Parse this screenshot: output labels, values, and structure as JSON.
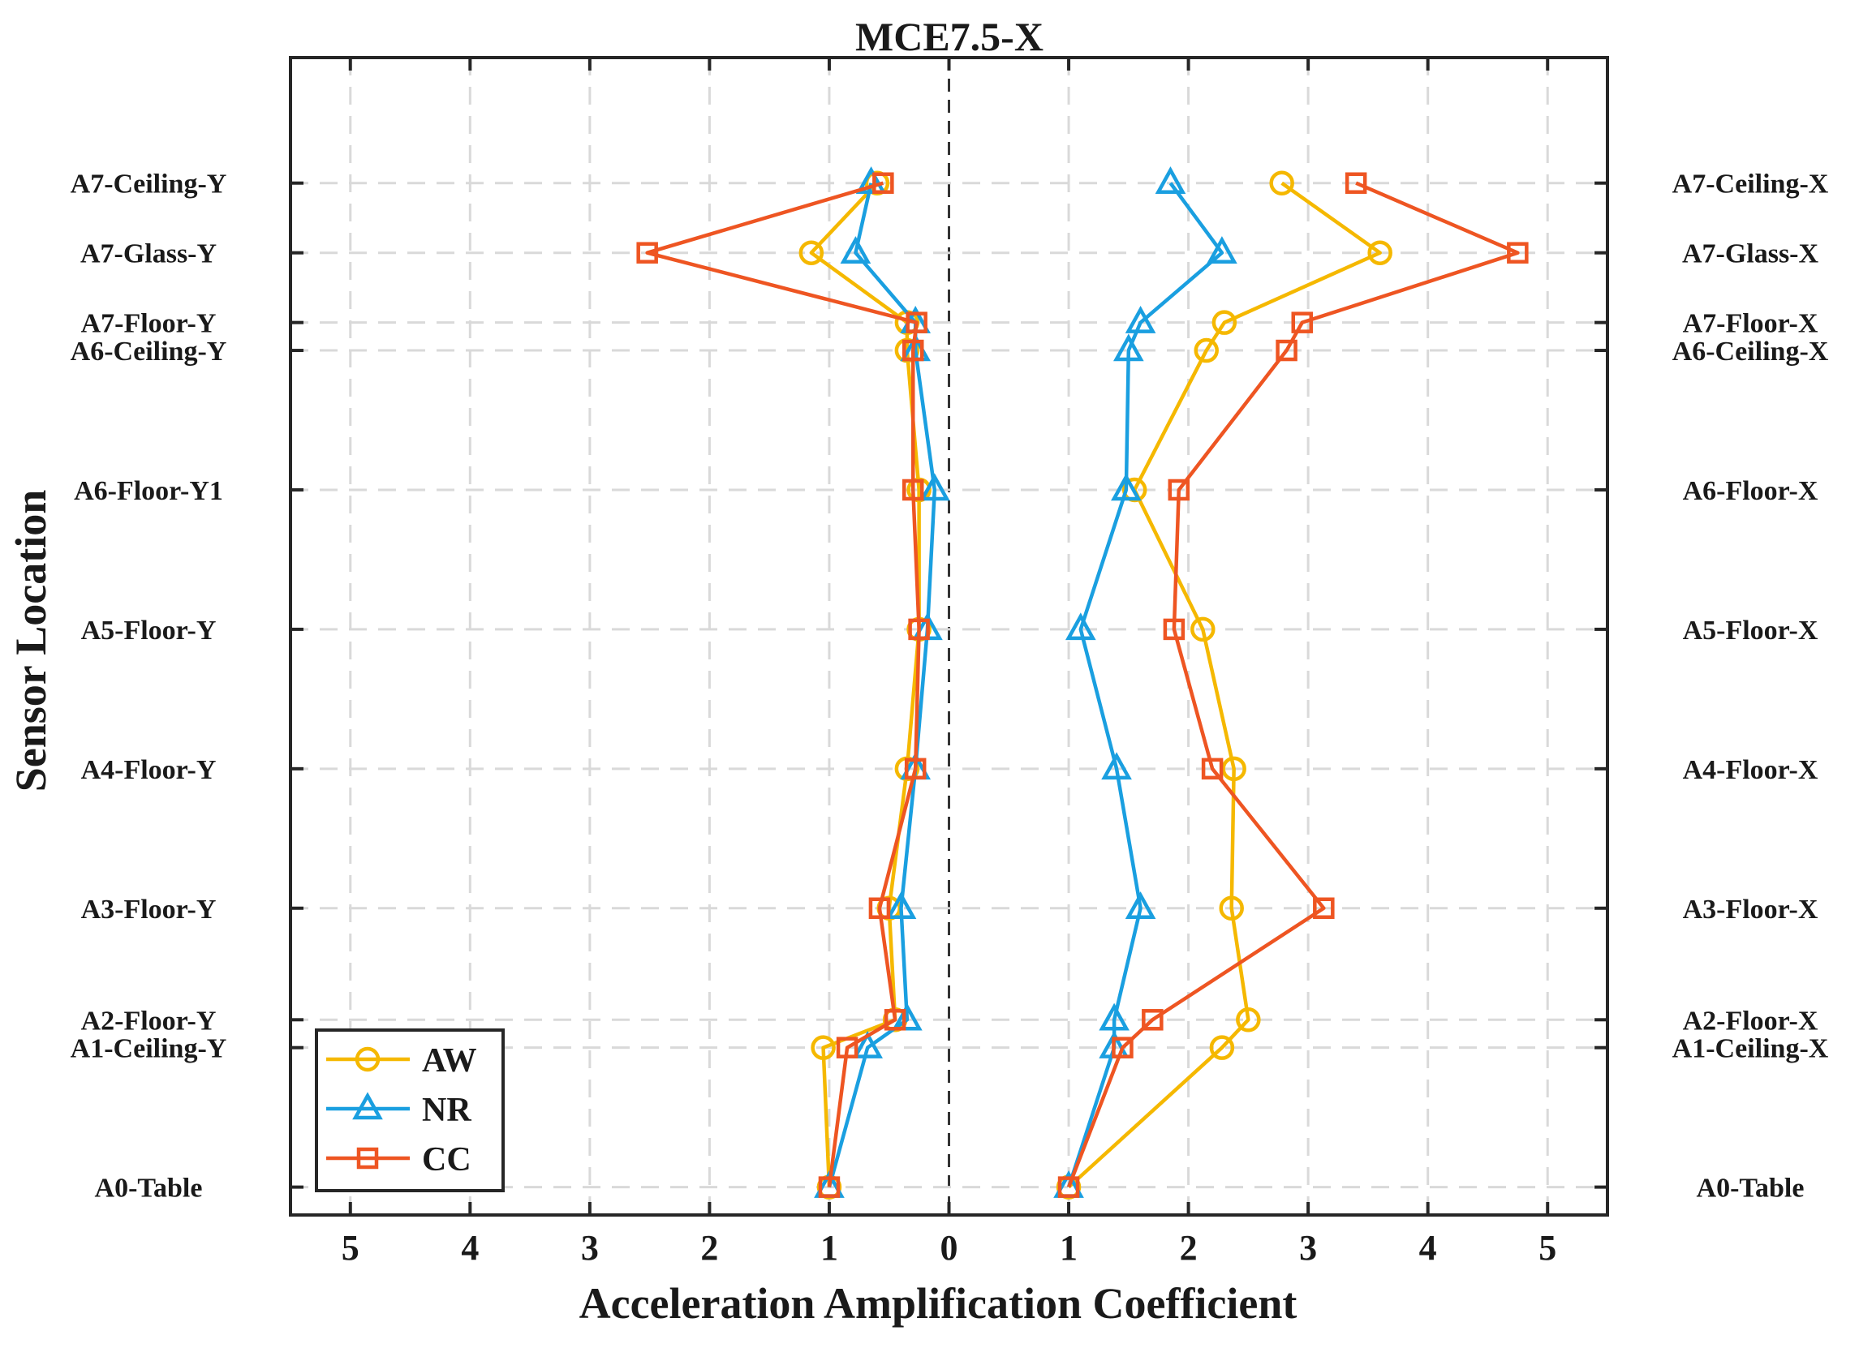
{
  "chart_data": {
    "type": "line",
    "title": "MCE7.5-X",
    "xlabel": "Acceleration Amplification Coefficient",
    "ylabel": "Sensor Location",
    "xlim": [
      -5.5,
      5.5
    ],
    "x_ticks": [
      -5,
      -4,
      -3,
      -2,
      -1,
      0,
      1,
      2,
      3,
      4,
      5
    ],
    "x_tick_labels": [
      "5",
      "4",
      "3",
      "2",
      "1",
      "0",
      "1",
      "2",
      "3",
      "4",
      "5"
    ],
    "ylim": [
      -0.2,
      8.1
    ],
    "y_levels": [
      0,
      1,
      1.2,
      2,
      3,
      4,
      5,
      6,
      6.2,
      6.7,
      7.2
    ],
    "left_labels": [
      "A0-Table",
      "A1-Ceiling-Y",
      "A2-Floor-Y",
      "A3-Floor-Y",
      "A4-Floor-Y",
      "A5-Floor-Y",
      "A6-Floor-Y1",
      "A6-Ceiling-Y",
      "A7-Floor-Y",
      "A7-Glass-Y",
      "A7-Ceiling-Y"
    ],
    "right_labels": [
      "A0-Table",
      "A1-Ceiling-X",
      "A2-Floor-X",
      "A3-Floor-X",
      "A4-Floor-X",
      "A5-Floor-X",
      "A6-Floor-X",
      "A6-Ceiling-X",
      "A7-Floor-X",
      "A7-Glass-X",
      "A7-Ceiling-X"
    ],
    "legend_position": "bottom-left",
    "series": [
      {
        "name": "AW",
        "color": "#f5b800",
        "marker": "circle",
        "y_direction": [
          1.0,
          1.05,
          0.45,
          0.5,
          0.35,
          0.25,
          0.25,
          0.35,
          0.35,
          1.15,
          0.6
        ],
        "x_direction": [
          1.0,
          2.28,
          2.5,
          2.36,
          2.38,
          2.12,
          1.55,
          2.15,
          2.3,
          3.6,
          2.78
        ]
      },
      {
        "name": "NR",
        "color": "#1a9fe0",
        "marker": "triangle",
        "y_direction": [
          1.0,
          0.68,
          0.35,
          0.4,
          0.28,
          0.18,
          0.12,
          0.28,
          0.28,
          0.78,
          0.65
        ],
        "x_direction": [
          1.0,
          1.38,
          1.38,
          1.6,
          1.4,
          1.1,
          1.48,
          1.5,
          1.6,
          2.28,
          1.85
        ]
      },
      {
        "name": "CC",
        "color": "#ee5522",
        "marker": "square",
        "y_direction": [
          1.0,
          0.85,
          0.45,
          0.58,
          0.28,
          0.25,
          0.3,
          0.3,
          0.27,
          2.52,
          0.55
        ],
        "x_direction": [
          1.0,
          1.45,
          1.7,
          3.13,
          2.2,
          1.88,
          1.92,
          2.82,
          2.95,
          4.75,
          3.4
        ]
      }
    ]
  }
}
